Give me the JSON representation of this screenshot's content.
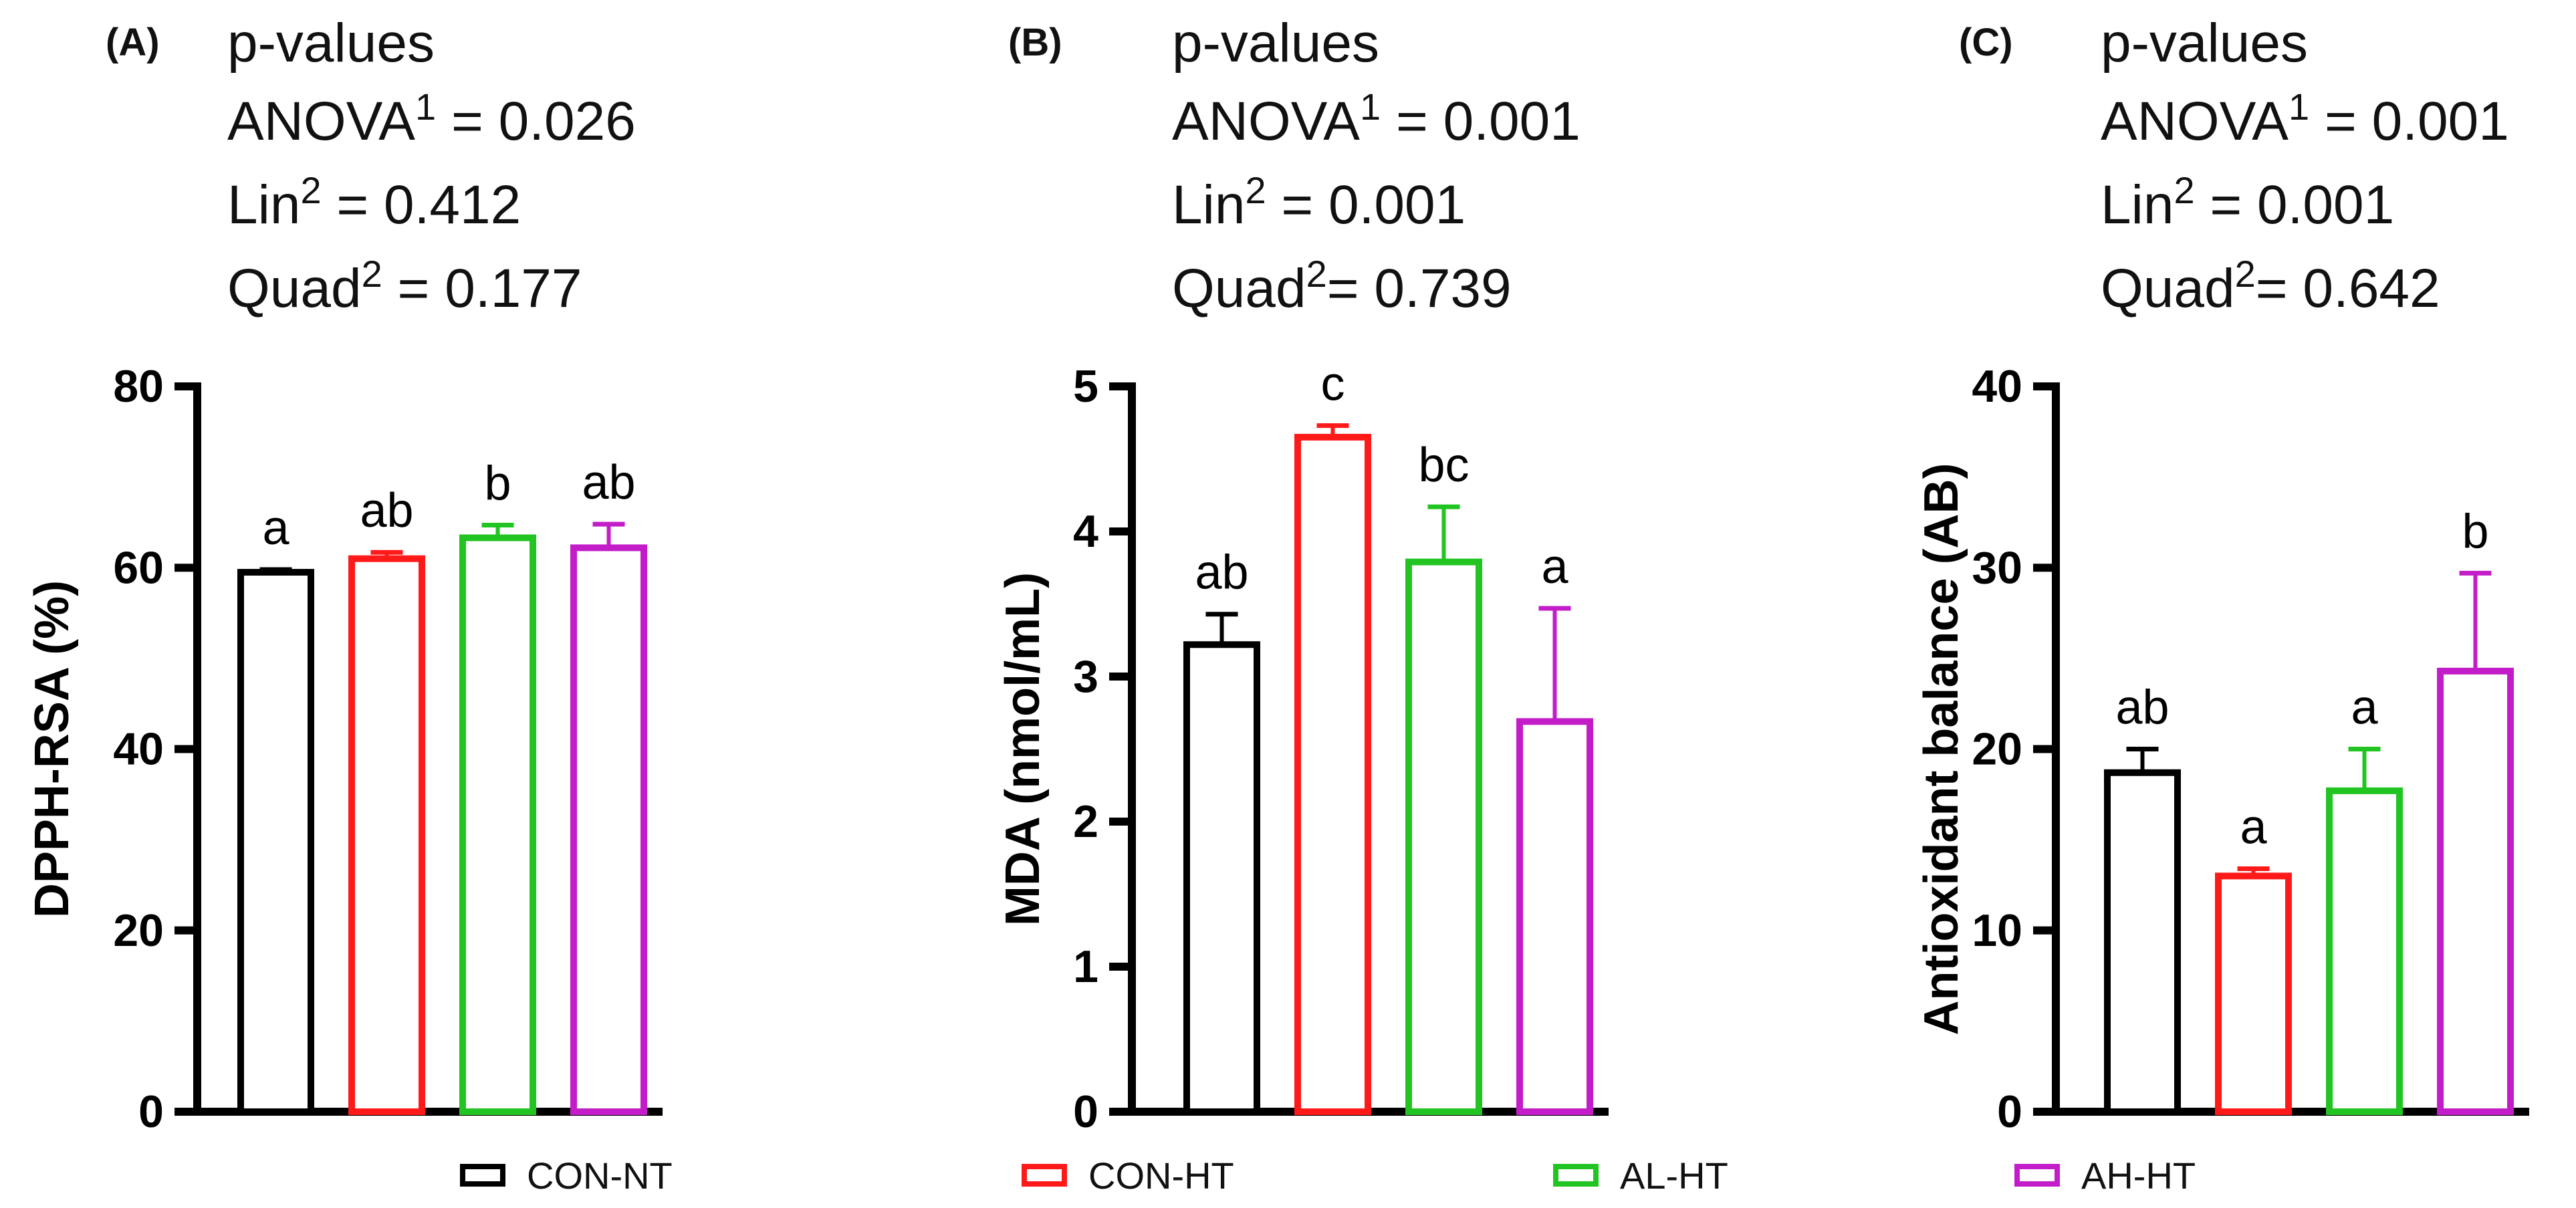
{
  "figure": {
    "colors": {
      "axis": "#000000",
      "CON-NT": "#000000",
      "CON-HT": "#ff1a1a",
      "AL-HT": "#22c422",
      "AH-HT": "#c21dc8"
    },
    "legend": [
      {
        "name": "CON-NT",
        "color": "#000000"
      },
      {
        "name": "CON-HT",
        "color": "#ff1a1a"
      },
      {
        "name": "AL-HT",
        "color": "#22c422"
      },
      {
        "name": "AH-HT",
        "color": "#c21dc8"
      }
    ]
  },
  "panels": [
    {
      "letter": "(A)",
      "stats": {
        "heading": "p-values",
        "anova_label": "ANOVA",
        "anova_sup": "1",
        "anova_value": " = 0.026",
        "lin_label": "Lin",
        "lin_sup": "2",
        "lin_value": " = 0.412",
        "quad_label": "Quad",
        "quad_sup": "2",
        "quad_value": " = 0.177"
      }
    },
    {
      "letter": "(B)",
      "stats": {
        "heading": "p-values",
        "anova_label": "ANOVA",
        "anova_sup": "1",
        "anova_value": " = 0.001",
        "lin_label": "Lin",
        "lin_sup": "2",
        "lin_value": " = 0.001",
        "quad_label": "Quad",
        "quad_sup": "2",
        "quad_value": "= 0.739"
      }
    },
    {
      "letter": "(C)",
      "stats": {
        "heading": "p-values",
        "anova_label": "ANOVA",
        "anova_sup": "1",
        "anova_value": " = 0.001",
        "lin_label": "Lin",
        "lin_sup": "2",
        "lin_value": " = 0.001",
        "quad_label": "Quad",
        "quad_sup": "2",
        "quad_value": "= 0.642"
      }
    }
  ],
  "chart_data": [
    {
      "type": "bar",
      "title": "",
      "xlabel": "",
      "ylabel": "DPPH-RSA (%)",
      "ylim": [
        0,
        80
      ],
      "yticks": [
        0,
        20,
        40,
        60,
        80
      ],
      "grid": false,
      "categories": [
        "CON-NT",
        "CON-HT",
        "AL-HT",
        "AH-HT"
      ],
      "values": [
        59.5,
        61.0,
        63.3,
        62.2
      ],
      "errors": [
        0.3,
        0.7,
        1.4,
        2.6
      ],
      "letters": [
        "a",
        "ab",
        "b",
        "ab"
      ]
    },
    {
      "type": "bar",
      "title": "",
      "xlabel": "",
      "ylabel": "MDA (nmol/mL)",
      "ylim": [
        0,
        5
      ],
      "yticks": [
        0,
        1,
        2,
        3,
        4,
        5
      ],
      "grid": false,
      "categories": [
        "CON-NT",
        "CON-HT",
        "AL-HT",
        "AH-HT"
      ],
      "values": [
        3.22,
        4.65,
        3.79,
        2.69
      ],
      "errors": [
        0.21,
        0.08,
        0.38,
        0.78
      ],
      "letters": [
        "ab",
        "c",
        "bc",
        "a"
      ]
    },
    {
      "type": "bar",
      "title": "",
      "xlabel": "",
      "ylabel": "Antioxidant balance (AB)",
      "ylim": [
        0,
        40
      ],
      "yticks": [
        0,
        10,
        20,
        30,
        40
      ],
      "grid": false,
      "categories": [
        "CON-NT",
        "CON-HT",
        "AL-HT",
        "AH-HT"
      ],
      "values": [
        18.7,
        13.0,
        17.7,
        24.3
      ],
      "errors": [
        1.3,
        0.4,
        2.3,
        5.4
      ],
      "letters": [
        "ab",
        "a",
        "a",
        "b"
      ]
    }
  ]
}
